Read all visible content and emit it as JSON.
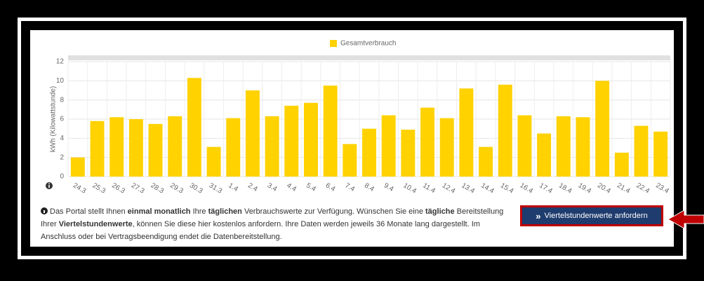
{
  "chart_data": {
    "type": "bar",
    "legend": "Gesamtverbrauch",
    "y_label": "kWh (Kilowattstunde)",
    "categories": [
      "24.3",
      "25.3",
      "26.3",
      "27.3",
      "28.3",
      "29.3",
      "30.3",
      "31.3",
      "1.4",
      "2.4",
      "3.4",
      "4.4",
      "5.4",
      "6.4",
      "7.4",
      "8.4",
      "9.4",
      "10.4",
      "11.4",
      "12.4",
      "13.4",
      "14.4",
      "15.4",
      "16.4",
      "17.4",
      "18.4",
      "19.4",
      "20.4",
      "21.4",
      "22.4",
      "23.4"
    ],
    "values": [
      2.0,
      5.8,
      6.2,
      6.0,
      5.5,
      6.3,
      10.3,
      3.1,
      6.1,
      9.0,
      6.3,
      7.4,
      7.7,
      9.5,
      3.4,
      5.0,
      6.4,
      4.9,
      7.2,
      6.1,
      9.2,
      3.1,
      9.6,
      6.4,
      4.5,
      6.3,
      6.2,
      10.0,
      2.5,
      5.3,
      4.7
    ],
    "color": "#ffd200",
    "ylim": [
      0,
      12
    ],
    "yticks": [
      0,
      2,
      4,
      6,
      8,
      10,
      12
    ],
    "grid": true
  },
  "notice": {
    "segments": [
      "Das Portal stellt Ihnen ",
      "einmal monatlich",
      " Ihre ",
      "täglichen",
      " Verbrauchswerte zur Verfügung. Wünschen Sie eine ",
      "tägliche",
      " Bereitstellung Ihrer ",
      "Viertelstundenwerte",
      ", können Sie diese hier kostenlos anfordern. Ihre Daten werden jeweils 36 Monate lang dargestellt. Im Anschluss oder bei Vertragsbeendigung endet die Datenbereitstellung."
    ]
  },
  "button": {
    "icon": "»",
    "label": "Viertelstundenwerte anfordern"
  }
}
